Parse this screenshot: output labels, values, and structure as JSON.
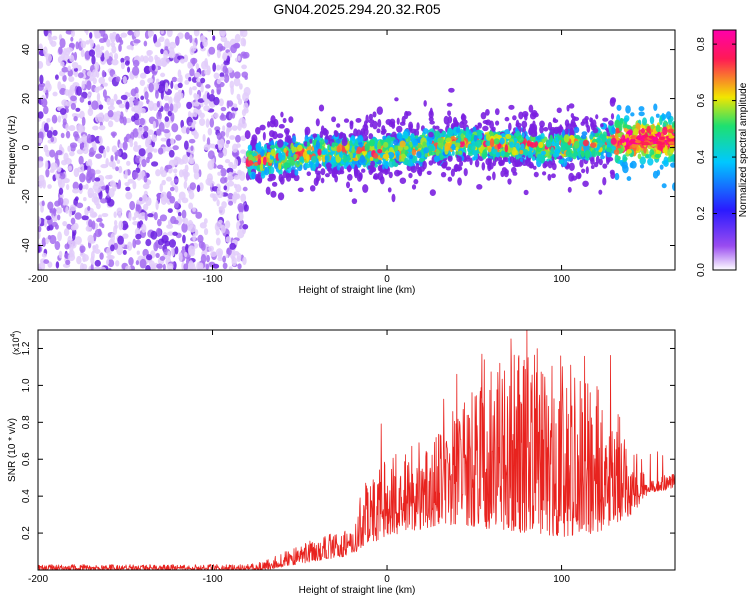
{
  "page": {
    "title": "GN04.2025.294.20.32.R05"
  },
  "chart_data": [
    {
      "type": "heatmap",
      "title": "GN04.2025.294.20.32.R05",
      "xlabel": "Height of straight line (km)",
      "ylabel": "Frequency (Hz)",
      "xlim": [
        -200,
        165
      ],
      "ylim": [
        -50,
        48
      ],
      "xticks": [
        -200,
        -100,
        0,
        100
      ],
      "xtick_labels": [
        "-200",
        "-100",
        "0",
        "100"
      ],
      "yticks": [
        -40,
        -20,
        0,
        20,
        40
      ],
      "ytick_labels": [
        "-40",
        "-20",
        "0",
        "20",
        "40"
      ],
      "colorbar": {
        "label": "Normalized spectral amplitude",
        "range": [
          0.0,
          0.85
        ],
        "ticks": [
          0.0,
          0.2,
          0.4,
          0.6,
          0.8
        ],
        "tick_labels": [
          "0.0",
          "0.2",
          "0.4",
          "0.6",
          "0.8"
        ],
        "colors": [
          "#ffffff",
          "#7a1fe0",
          "#2a1aff",
          "#00c8ff",
          "#1ee070",
          "#f2e600",
          "#ff1a55",
          "#ff00aa"
        ]
      },
      "segments": [
        {
          "name": "noise",
          "x_range": [
            -200,
            -80
          ],
          "freq_range": [
            -50,
            48
          ],
          "amplitude": 0.05
        },
        {
          "name": "signal-band",
          "x_range": [
            -80,
            165
          ],
          "center_freq": [
            [
              -80,
              -6
            ],
            [
              -40,
              -2
            ],
            [
              0,
              -2
            ],
            [
              40,
              2
            ],
            [
              100,
              0
            ],
            [
              130,
              3
            ],
            [
              165,
              3
            ]
          ],
          "halfwidth_hz": 5,
          "amplitude_peak": 0.85
        }
      ]
    },
    {
      "type": "line",
      "xlabel": "Height of straight line (km)",
      "ylabel": "SNR (10 * v/v)",
      "exponent_label": "(x10",
      "exponent_power": "4",
      "exponent_close": ")",
      "xlim": [
        -200,
        165
      ],
      "ylim": [
        0,
        1.3
      ],
      "xticks": [
        -200,
        -100,
        0,
        100
      ],
      "xtick_labels": [
        "-200",
        "-100",
        "0",
        "100"
      ],
      "yticks": [
        0.2,
        0.4,
        0.6,
        0.8,
        1.0,
        1.2
      ],
      "ytick_labels": [
        "0.2",
        "0.4",
        "0.6",
        "0.8",
        "1.0",
        "1.2"
      ],
      "color": "#e8231f",
      "envelope": {
        "x": [
          -200,
          -80,
          -70,
          -40,
          -20,
          -15,
          0,
          20,
          40,
          60,
          80,
          100,
          120,
          140,
          150,
          165
        ],
        "base": [
          0.0,
          0.0,
          0.0,
          0.05,
          0.08,
          0.12,
          0.18,
          0.22,
          0.25,
          0.22,
          0.2,
          0.18,
          0.2,
          0.3,
          0.42,
          0.44
        ],
        "top": [
          0.03,
          0.03,
          0.05,
          0.18,
          0.22,
          0.45,
          0.6,
          0.7,
          0.9,
          1.1,
          1.2,
          1.2,
          1.05,
          0.75,
          0.5,
          0.52
        ]
      }
    }
  ]
}
